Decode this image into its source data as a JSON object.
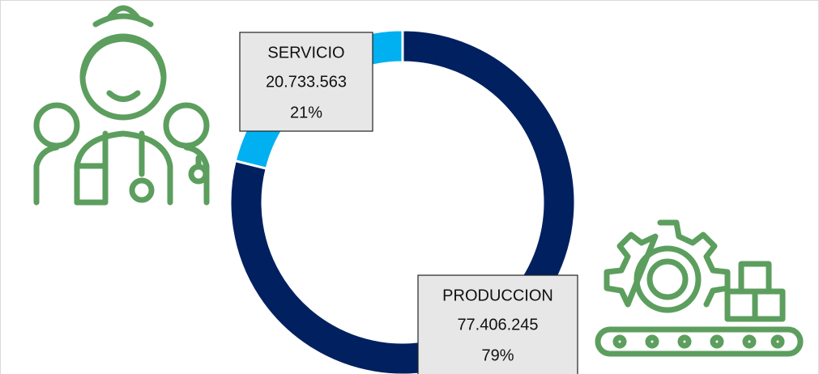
{
  "chart_data": {
    "type": "donut",
    "categories": [
      "SERVICIO",
      "PRODUCCION"
    ],
    "values": [
      20733563,
      77406245
    ],
    "value_labels": [
      "20.733.563",
      "77.406.245"
    ],
    "percentages": [
      21,
      79
    ],
    "percentage_labels": [
      "21%",
      "79%"
    ],
    "colors": [
      "#00b0f0",
      "#002060"
    ]
  }
}
